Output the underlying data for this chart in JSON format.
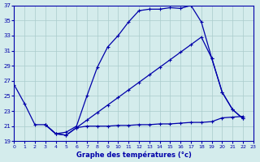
{
  "xlabel": "Graphe des températures (°c)",
  "bg_color": "#d4ecec",
  "line_color": "#0000aa",
  "grid_color": "#aacccc",
  "xlim": [
    0,
    23
  ],
  "ylim": [
    19,
    37
  ],
  "yticks": [
    19,
    21,
    23,
    25,
    27,
    29,
    31,
    33,
    35,
    37
  ],
  "xticks": [
    0,
    1,
    2,
    3,
    4,
    5,
    6,
    7,
    8,
    9,
    10,
    11,
    12,
    13,
    14,
    15,
    16,
    17,
    18,
    19,
    20,
    21,
    22,
    23
  ],
  "line1_x": [
    0,
    1,
    2,
    3,
    4,
    5,
    6,
    7,
    8,
    9,
    10,
    11,
    12,
    13,
    14,
    15,
    16,
    17,
    18,
    19,
    20,
    21,
    22
  ],
  "line1_y": [
    26.5,
    24.0,
    21.2,
    21.2,
    20.0,
    20.2,
    21.0,
    25.0,
    28.8,
    31.5,
    33.0,
    34.8,
    36.3,
    36.5,
    36.5,
    36.7,
    36.6,
    37.0,
    34.8,
    30.0,
    25.5,
    23.2,
    22.0
  ],
  "line2_x": [
    3,
    4,
    5,
    6,
    7,
    8,
    9,
    10,
    11,
    12,
    13,
    14,
    15,
    16,
    17,
    18,
    19,
    20,
    21,
    22
  ],
  "line2_y": [
    21.2,
    20.0,
    19.8,
    20.8,
    21.8,
    22.8,
    23.8,
    24.8,
    25.8,
    26.8,
    27.8,
    28.8,
    29.8,
    30.8,
    31.8,
    32.8,
    30.0,
    25.5,
    23.2,
    22.0
  ],
  "line3_x": [
    3,
    4,
    5,
    6,
    7,
    8,
    9,
    10,
    11,
    12,
    13,
    14,
    15,
    16,
    17,
    18,
    19,
    20,
    21,
    22
  ],
  "line3_y": [
    21.2,
    20.0,
    19.8,
    20.8,
    21.0,
    21.0,
    21.0,
    21.1,
    21.1,
    21.2,
    21.2,
    21.3,
    21.3,
    21.4,
    21.5,
    21.5,
    21.6,
    22.1,
    22.2,
    22.3
  ]
}
